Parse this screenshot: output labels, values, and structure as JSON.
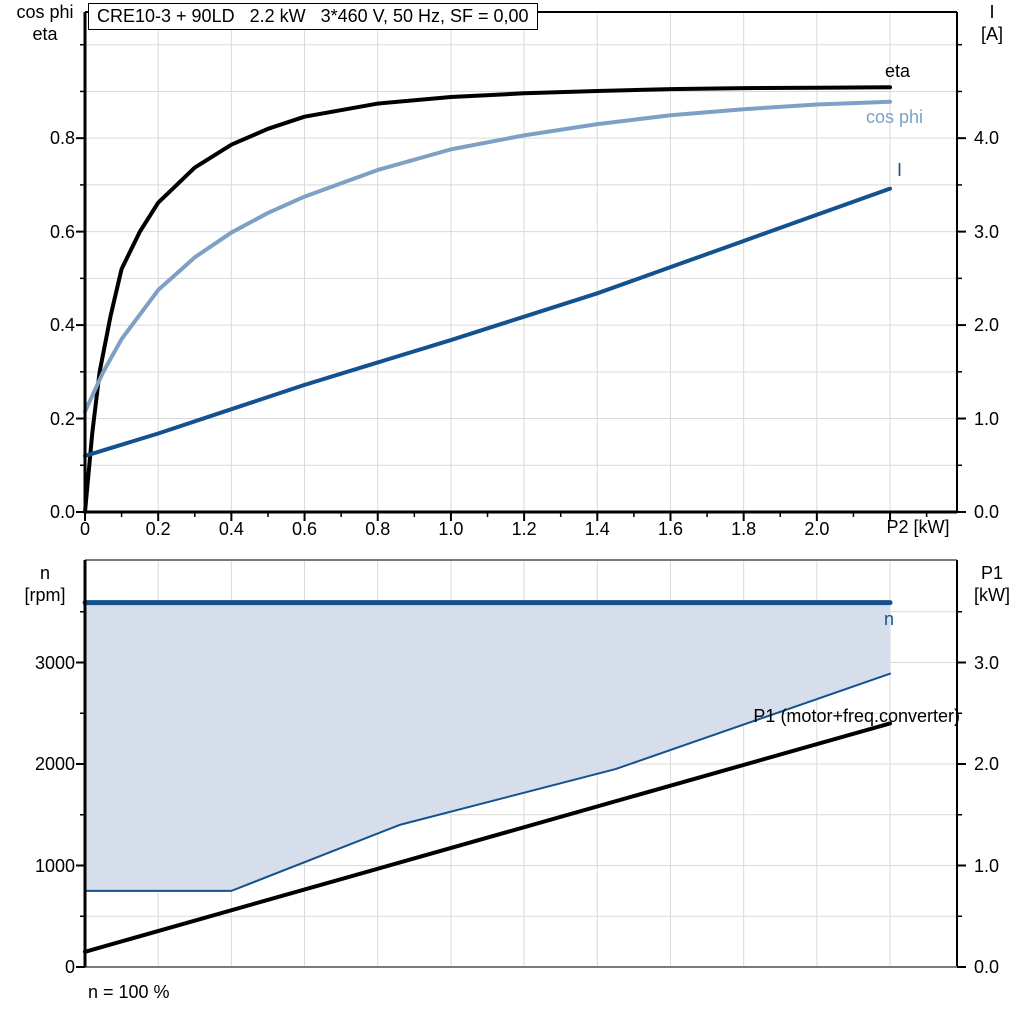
{
  "chart_data": [
    {
      "id": "motor-efficiency-chart",
      "type": "line",
      "title": "CRE10-3 + 90LD   2.2 kW   3*460 V, 50 Hz, SF = 0,00",
      "x_title": "P2 [kW]",
      "y_left_title": [
        "cos phi",
        "eta"
      ],
      "y_right_title": [
        "I",
        "[A]"
      ],
      "axes": {
        "x": {
          "range": [
            0,
            2.383
          ],
          "ticks": true,
          "major": [
            0,
            0.2,
            0.4,
            0.6,
            0.8,
            1.0,
            1.2,
            1.4,
            1.6,
            1.8,
            2.0,
            2.2
          ],
          "labels": [
            "0",
            "0.2",
            "0.4",
            "0.6",
            "0.8",
            "1.0",
            "1.2",
            "1.4",
            "1.6",
            "1.8",
            "2.0",
            ""
          ],
          "minor": [
            0.1,
            0.3,
            0.5,
            0.7,
            0.9,
            1.1,
            1.3,
            1.5,
            1.7,
            1.9,
            2.1,
            2.3
          ]
        },
        "y_left": {
          "range": [
            0,
            1.07
          ],
          "major": [
            0,
            0.2,
            0.4,
            0.6,
            0.8
          ],
          "labels": [
            "0.0",
            "0.2",
            "0.4",
            "0.6",
            "0.8"
          ],
          "minor": [
            0.1,
            0.3,
            0.5,
            0.7,
            0.9,
            1.0
          ]
        },
        "y_right": {
          "range": [
            0,
            5.35
          ],
          "major": [
            0,
            1,
            2,
            3,
            4
          ],
          "labels": [
            "0.0",
            "1.0",
            "2.0",
            "3.0",
            "4.0"
          ],
          "minor": [
            0.5,
            1.5,
            2.5,
            3.5,
            4.5,
            5.0
          ]
        }
      },
      "grid": {
        "color": "#d9d9d9",
        "x": [
          0.2,
          0.4,
          0.6,
          0.8,
          1.0,
          1.2,
          1.4,
          1.6,
          1.8,
          2.0,
          2.2
        ],
        "y_left": [
          0.1,
          0.2,
          0.3,
          0.4,
          0.5,
          0.6,
          0.7,
          0.8,
          0.9,
          1.0
        ]
      },
      "frame": {
        "top": [
          "#000000",
          2
        ],
        "right": [
          "#000000",
          2
        ],
        "bottom": [
          "#000000",
          3
        ],
        "left": [
          "#000000",
          3
        ]
      },
      "series": [
        {
          "name": "eta",
          "color": "#000000",
          "width": 4,
          "axis": "left",
          "points": [
            [
              0,
              0
            ],
            [
              0.02,
              0.17
            ],
            [
              0.04,
              0.3
            ],
            [
              0.07,
              0.42
            ],
            [
              0.1,
              0.52
            ],
            [
              0.15,
              0.6
            ],
            [
              0.2,
              0.662
            ],
            [
              0.3,
              0.737
            ],
            [
              0.4,
              0.786
            ],
            [
              0.5,
              0.82
            ],
            [
              0.6,
              0.846
            ],
            [
              0.8,
              0.874
            ],
            [
              1.0,
              0.888
            ],
            [
              1.2,
              0.896
            ],
            [
              1.4,
              0.901
            ],
            [
              1.6,
              0.905
            ],
            [
              1.8,
              0.907
            ],
            [
              2.0,
              0.908
            ],
            [
              2.2,
              0.909
            ]
          ]
        },
        {
          "name": "cos phi",
          "color": "#7da0c4",
          "width": 4,
          "axis": "left",
          "points": [
            [
              0,
              0.215
            ],
            [
              0.05,
              0.3
            ],
            [
              0.1,
              0.37
            ],
            [
              0.2,
              0.475
            ],
            [
              0.3,
              0.545
            ],
            [
              0.4,
              0.598
            ],
            [
              0.5,
              0.64
            ],
            [
              0.6,
              0.675
            ],
            [
              0.8,
              0.732
            ],
            [
              1.0,
              0.776
            ],
            [
              1.2,
              0.806
            ],
            [
              1.4,
              0.83
            ],
            [
              1.6,
              0.849
            ],
            [
              1.8,
              0.862
            ],
            [
              2.0,
              0.872
            ],
            [
              2.2,
              0.878
            ]
          ]
        },
        {
          "name": "I",
          "color": "#14518f",
          "width": 4,
          "axis": "right",
          "points": [
            [
              0,
              0.6
            ],
            [
              0.2,
              0.84
            ],
            [
              0.4,
              1.1
            ],
            [
              0.6,
              1.36
            ],
            [
              0.8,
              1.6
            ],
            [
              1.0,
              1.84
            ],
            [
              1.2,
              2.09
            ],
            [
              1.4,
              2.34
            ],
            [
              1.6,
              2.62
            ],
            [
              1.8,
              2.9
            ],
            [
              2.0,
              3.18
            ],
            [
              2.2,
              3.46
            ]
          ]
        }
      ],
      "labels": {
        "eta": "eta",
        "cos_phi": "cos phi",
        "current": "I"
      }
    },
    {
      "id": "motor-speed-power-chart",
      "type": "line",
      "y_left_title": [
        "n",
        "[rpm]"
      ],
      "y_right_title": [
        "P1",
        "[kW]"
      ],
      "axes": {
        "x": {
          "range": [
            0,
            2.383
          ],
          "ticks": false,
          "major": [],
          "labels": [],
          "minor": []
        },
        "y_left": {
          "range": [
            0,
            4010
          ],
          "major": [
            0,
            1000,
            2000,
            3000
          ],
          "labels": [
            "0",
            "1000",
            "2000",
            "3000"
          ],
          "minor": [
            500,
            1500,
            2500,
            3500
          ]
        },
        "y_right": {
          "range": [
            0,
            4.01
          ],
          "major": [
            0,
            1,
            2,
            3
          ],
          "labels": [
            "0.0",
            "1.0",
            "2.0",
            "3.0"
          ],
          "minor": [
            0.5,
            1.5,
            2.5,
            3.5
          ]
        }
      },
      "grid": {
        "color": "#d9d9d9",
        "x": [
          0.2,
          0.4,
          0.6,
          0.8,
          1.0,
          1.2,
          1.4,
          1.6,
          1.8,
          2.0,
          2.2
        ],
        "y_left": [
          500,
          1000,
          1500,
          2000,
          2500,
          3000,
          3500
        ]
      },
      "frame": {
        "top": [
          "#7a7a7a",
          2
        ],
        "right": [
          "#000000",
          2
        ],
        "bottom": [
          "#7a7a7a",
          2
        ],
        "left": [
          "#000000",
          3
        ]
      },
      "fill": {
        "lower": "n_min",
        "upper": "n",
        "color": "#d5deea"
      },
      "series": [
        {
          "name": "n",
          "color": "#14518f",
          "width": 5,
          "axis": "left",
          "points": [
            [
              0,
              3590
            ],
            [
              2.2,
              3590
            ]
          ]
        },
        {
          "name": "n_min",
          "color": "#14518f",
          "width": 2,
          "axis": "left",
          "points": [
            [
              0,
              750
            ],
            [
              0.4,
              750
            ],
            [
              0.86,
              1400
            ],
            [
              1.45,
              1950
            ],
            [
              2.2,
              2890
            ]
          ]
        },
        {
          "name": "P1",
          "color": "#000000",
          "width": 4,
          "axis": "right",
          "points": [
            [
              0,
              0.15
            ],
            [
              2.2,
              2.4
            ]
          ]
        }
      ],
      "labels": {
        "n": "n",
        "p1": "P1 (motor+freq.converter)",
        "footnote": "n = 100 %"
      }
    }
  ]
}
